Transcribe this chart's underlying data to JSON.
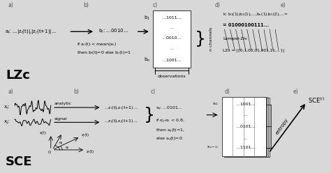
{
  "fig_w": 4.74,
  "fig_h": 2.48,
  "dpi": 100,
  "bg_color": "#d8d8d8",
  "panel_color": "white",
  "top_panel": {
    "a_label": "a)",
    "b_label": "b)",
    "c_label": "c)",
    "d_label": "d)",
    "e_label": "e)",
    "a_text": "a$_i$: ...|z$_i$(t)|,|z$_i$(t+1)|...",
    "arrow1_text": "",
    "b_text0": "b$_i$: ...0010...",
    "b_text1": "if a$_i$(t) < mean(a$_i$)",
    "b_text2": "then b$_i$(t)=0 else b$_i$(t)=1",
    "c_b1": "b$_1$",
    "c_bn": "b$_n$",
    "c_row1": "...1011...",
    "c_row2": "...",
    "c_row3": "...0010...",
    "c_row4": "...",
    "c_row5": "...1001...",
    "obs_label": "observations",
    "n_chan_label": "n channels",
    "d_text1": "k: b$_1$(1),b$_2$(1),...,b$_n$(1),b$_1$(2),...=",
    "d_text2": "= 01000100111...",
    "e_text1": "Lempel-Ziv",
    "e_text2": "LZc = |{0,1,00,01,001,11,...}|",
    "main_label": "LZc"
  },
  "bottom_panel": {
    "a_label": "a)",
    "b_label": "b)",
    "c_label": "c)",
    "d_label": "d)",
    "e_label": "e)",
    "ai_label": "x$_i$:",
    "aj_label": "x$_j$:",
    "analytic_text": "analytic",
    "signal_text": "signal",
    "bi_text": "...z$_i$(t),z$_i$(t+1)...",
    "bj_text": "...z$_j$(t),z$_j$(t+1)...",
    "c_sij": "s$_{ij}$: ...0101...",
    "c_cond1": "if α$_j$-α$_i$ < 0.8,",
    "c_cond2": "then s$_{ij}$(t)=1,",
    "c_cond3": "else s$_{ij}$(t)=0",
    "d_s1": "s$_{i1}$",
    "d_sn": "s$_{(n-1)}$",
    "d_row1": "...1001...",
    "d_row2": "...",
    "d_row3": "...0101...",
    "d_row4": "...",
    "d_row5": "...1101...",
    "e_label_text": "SCE$^{(i)}$",
    "e_arrow_text": "entropy",
    "main_label": "SCE",
    "angle_O": "O",
    "angle_ai": "α$_i$",
    "angle_aj": "α$_j$",
    "angle_zi": "z$_i$(t)",
    "angle_zj": "z$_j$(t)"
  }
}
